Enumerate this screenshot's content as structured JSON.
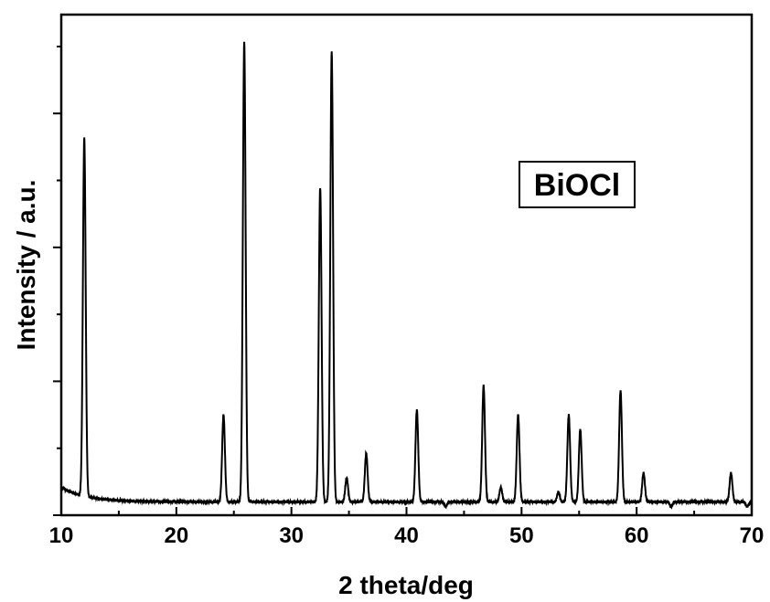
{
  "chart_data": {
    "type": "line",
    "title": "",
    "xlabel": "2 theta/deg",
    "ylabel": "Intensity / a.u.",
    "xlim": [
      10,
      70
    ],
    "ylim": [
      0,
      100
    ],
    "x_ticks": [
      "10",
      "20",
      "30",
      "40",
      "50",
      "60",
      "70"
    ],
    "y_ticks_labeled": false,
    "grid": false,
    "legend": "none",
    "annotation": "BiOCl",
    "line_color": "#000000",
    "baseline": 2,
    "series": [
      {
        "peaks": [
          {
            "x": 12.0,
            "y": 76
          },
          {
            "x": 24.1,
            "y": 20
          },
          {
            "x": 25.9,
            "y": 97
          },
          {
            "x": 32.5,
            "y": 67
          },
          {
            "x": 33.5,
            "y": 95
          },
          {
            "x": 34.8,
            "y": 7
          },
          {
            "x": 36.5,
            "y": 12
          },
          {
            "x": 40.9,
            "y": 21
          },
          {
            "x": 43.4,
            "y": 1
          },
          {
            "x": 46.7,
            "y": 26
          },
          {
            "x": 48.2,
            "y": 5
          },
          {
            "x": 49.7,
            "y": 20
          },
          {
            "x": 53.2,
            "y": 4
          },
          {
            "x": 54.1,
            "y": 20
          },
          {
            "x": 55.1,
            "y": 17
          },
          {
            "x": 58.6,
            "y": 25
          },
          {
            "x": 60.6,
            "y": 8
          },
          {
            "x": 63.0,
            "y": 1
          },
          {
            "x": 68.2,
            "y": 8
          },
          {
            "x": 69.6,
            "y": 1
          }
        ]
      }
    ]
  }
}
